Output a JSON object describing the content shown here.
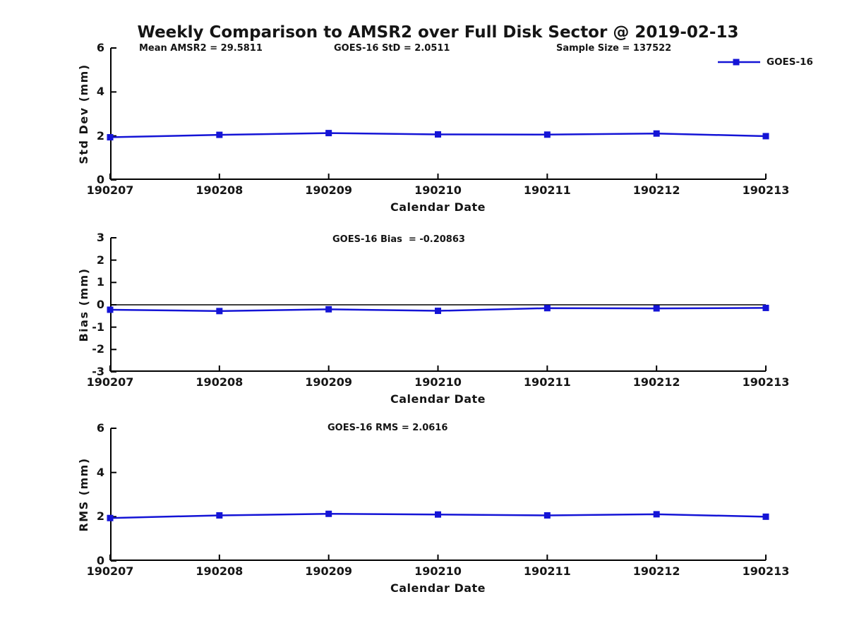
{
  "title": "Weekly Comparison to AMSR2 over Full Disk Sector @ 2019-02-13",
  "legend": {
    "label": "GOES-16"
  },
  "colors": {
    "series": "#1414d6",
    "axis": "#000000",
    "background": "#ffffff",
    "text": "#151515"
  },
  "chart_data": [
    {
      "id": "stddev",
      "type": "line",
      "title": "",
      "annotations": [
        "Mean AMSR2 = 29.5811",
        "GOES-16 StD = 2.0511",
        "Sample Size = 137522"
      ],
      "x": [
        "190207",
        "190208",
        "190209",
        "190210",
        "190211",
        "190212",
        "190213"
      ],
      "series": [
        {
          "name": "GOES-16",
          "marker": "square",
          "values": [
            1.94,
            2.05,
            2.13,
            2.07,
            2.06,
            2.11,
            1.99
          ]
        }
      ],
      "xlabel": "Calendar Date",
      "ylabel": "Std Dev (mm)",
      "ylim": [
        0,
        6
      ],
      "yticks": [
        0,
        2,
        4,
        6
      ],
      "grid": false,
      "zero_line": false,
      "legend_position": "top-right-outside"
    },
    {
      "id": "bias",
      "type": "line",
      "title": "",
      "annotations": [
        "GOES-16 Bias  = -0.20863"
      ],
      "x": [
        "190207",
        "190208",
        "190209",
        "190210",
        "190211",
        "190212",
        "190213"
      ],
      "series": [
        {
          "name": "GOES-16",
          "marker": "square",
          "values": [
            -0.22,
            -0.28,
            -0.2,
            -0.27,
            -0.15,
            -0.16,
            -0.14
          ]
        }
      ],
      "xlabel": "Calendar Date",
      "ylabel": "Bias (mm)",
      "ylim": [
        -3,
        3
      ],
      "yticks": [
        -3,
        -2,
        -1,
        0,
        1,
        2,
        3
      ],
      "grid": false,
      "zero_line": true,
      "legend_position": "none"
    },
    {
      "id": "rms",
      "type": "line",
      "title": "",
      "annotations": [
        "GOES-16 RMS = 2.0616"
      ],
      "x": [
        "190207",
        "190208",
        "190209",
        "190210",
        "190211",
        "190212",
        "190213"
      ],
      "series": [
        {
          "name": "GOES-16",
          "marker": "square",
          "values": [
            1.94,
            2.06,
            2.13,
            2.1,
            2.06,
            2.11,
            2.0
          ]
        }
      ],
      "xlabel": "Calendar Date",
      "ylabel": "RMS (mm)",
      "ylim": [
        0,
        6
      ],
      "yticks": [
        0,
        2,
        4,
        6
      ],
      "grid": false,
      "zero_line": false,
      "legend_position": "none"
    }
  ]
}
